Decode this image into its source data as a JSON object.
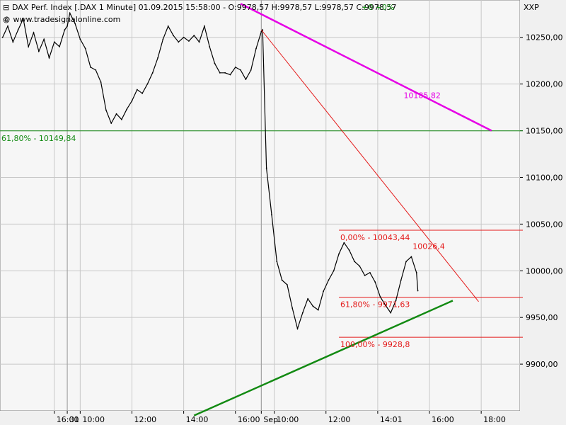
{
  "header": {
    "title": "DAX Perf. Index [.DAX  1 Minute] 01.09.2015 15:58:00 - O:9978,57 H:9978,57 L:9978,57 C:9978,57",
    "change": "+0 +0%",
    "source": "© www.tradesignalonline.com",
    "axis_unit": "XXP"
  },
  "colors": {
    "price": "#000000",
    "grid": "#c8c8c8",
    "fib_red": "#e41a1a",
    "magenta": "#e600e6",
    "green": "#128a12",
    "plot_bg": "#f6f6f6",
    "frame": "#808080"
  },
  "chart_data": {
    "type": "line",
    "title": "DAX Perf. Index [.DAX  1 Minute]",
    "ylim": [
      9850,
      10290
    ],
    "y_ticks": [
      9900,
      9950,
      10000,
      10050,
      10100,
      10150,
      10200,
      10250
    ],
    "y_tick_labels": [
      "9900,00",
      "9950,00",
      "10000,00",
      "10050,00",
      "10100,00",
      "10150,00",
      "10200,00",
      "10250,00"
    ],
    "x_tick_labels": [
      "16:00",
      "31",
      "10:00",
      "12:00",
      "14:00",
      "16:00",
      "Sep",
      "10:00",
      "12:00",
      "14:01",
      "16:00",
      "18:00"
    ],
    "x_tick_positions": [
      0.0,
      0.5,
      1.0,
      3.0,
      5.0,
      7.0,
      8.0,
      8.5,
      10.5,
      12.5,
      14.5,
      16.5
    ],
    "day_separators": [
      0.5,
      8.0
    ],
    "series": [
      {
        "values": [
          [
            -2.0,
            10250
          ],
          [
            -1.8,
            10262
          ],
          [
            -1.6,
            10245
          ],
          [
            -1.4,
            10258
          ],
          [
            -1.2,
            10270
          ],
          [
            -1.0,
            10240
          ],
          [
            -0.8,
            10255
          ],
          [
            -0.6,
            10235
          ],
          [
            -0.4,
            10248
          ],
          [
            -0.2,
            10228
          ],
          [
            0.0,
            10245
          ],
          [
            0.2,
            10240
          ],
          [
            0.4,
            10258
          ],
          [
            0.5,
            10262
          ],
          [
            0.6,
            10276
          ],
          [
            0.8,
            10265
          ],
          [
            1.0,
            10248
          ],
          [
            1.2,
            10238
          ],
          [
            1.4,
            10218
          ],
          [
            1.6,
            10215
          ],
          [
            1.8,
            10202
          ],
          [
            2.0,
            10172
          ],
          [
            2.2,
            10158
          ],
          [
            2.4,
            10168
          ],
          [
            2.6,
            10162
          ],
          [
            2.8,
            10173
          ],
          [
            3.0,
            10182
          ],
          [
            3.2,
            10194
          ],
          [
            3.4,
            10190
          ],
          [
            3.6,
            10200
          ],
          [
            3.8,
            10212
          ],
          [
            4.0,
            10228
          ],
          [
            4.2,
            10248
          ],
          [
            4.4,
            10262
          ],
          [
            4.6,
            10252
          ],
          [
            4.8,
            10245
          ],
          [
            5.0,
            10250
          ],
          [
            5.2,
            10246
          ],
          [
            5.4,
            10252
          ],
          [
            5.6,
            10245
          ],
          [
            5.8,
            10262
          ],
          [
            6.0,
            10240
          ],
          [
            6.2,
            10222
          ],
          [
            6.4,
            10212
          ],
          [
            6.6,
            10212
          ],
          [
            6.8,
            10210
          ],
          [
            7.0,
            10218
          ],
          [
            7.2,
            10215
          ],
          [
            7.4,
            10205
          ],
          [
            7.6,
            10215
          ],
          [
            7.8,
            10238
          ],
          [
            8.0,
            10256
          ],
          [
            8.05,
            10258
          ],
          [
            8.2,
            10110
          ],
          [
            8.4,
            10060
          ],
          [
            8.6,
            10010
          ],
          [
            8.8,
            9990
          ],
          [
            9.0,
            9985
          ],
          [
            9.2,
            9960
          ],
          [
            9.4,
            9938
          ],
          [
            9.6,
            9955
          ],
          [
            9.8,
            9970
          ],
          [
            10.0,
            9962
          ],
          [
            10.2,
            9958
          ],
          [
            10.4,
            9978
          ],
          [
            10.6,
            9990
          ],
          [
            10.8,
            10000
          ],
          [
            11.0,
            10018
          ],
          [
            11.2,
            10030
          ],
          [
            11.4,
            10022
          ],
          [
            11.6,
            10010
          ],
          [
            11.8,
            10005
          ],
          [
            12.0,
            9995
          ],
          [
            12.2,
            9998
          ],
          [
            12.4,
            9988
          ],
          [
            12.6,
            9972
          ],
          [
            12.8,
            9963
          ],
          [
            13.0,
            9955
          ],
          [
            13.2,
            9968
          ],
          [
            13.4,
            9990
          ],
          [
            13.6,
            10010
          ],
          [
            13.8,
            10015
          ],
          [
            14.0,
            9998
          ],
          [
            14.05,
            9978.57
          ]
        ]
      }
    ],
    "lines": [
      {
        "label": "10185,82",
        "color": "magenta",
        "points": [
          [
            7.2,
            10286
          ],
          [
            16.9,
            10150
          ]
        ]
      },
      {
        "label": "10026,4",
        "color": "fib_red",
        "points": [
          [
            8.0,
            10258
          ],
          [
            16.4,
            9967
          ]
        ]
      },
      {
        "label": "",
        "color": "green",
        "points": [
          [
            5.4,
            9845
          ],
          [
            15.4,
            9968
          ]
        ]
      }
    ],
    "levels": [
      {
        "label": "61,80% - 10149,84",
        "value": 10149.84,
        "color": "green",
        "full_width": true
      },
      {
        "label": "0,00% - 10043,44",
        "value": 10043.44,
        "color": "fib_red",
        "full_width": false
      },
      {
        "label": "61,80% - 9971,63",
        "value": 9971.63,
        "color": "fib_red",
        "full_width": false
      },
      {
        "label": "100,00% - 9928,8",
        "value": 9928.8,
        "color": "fib_red",
        "full_width": false
      }
    ]
  }
}
